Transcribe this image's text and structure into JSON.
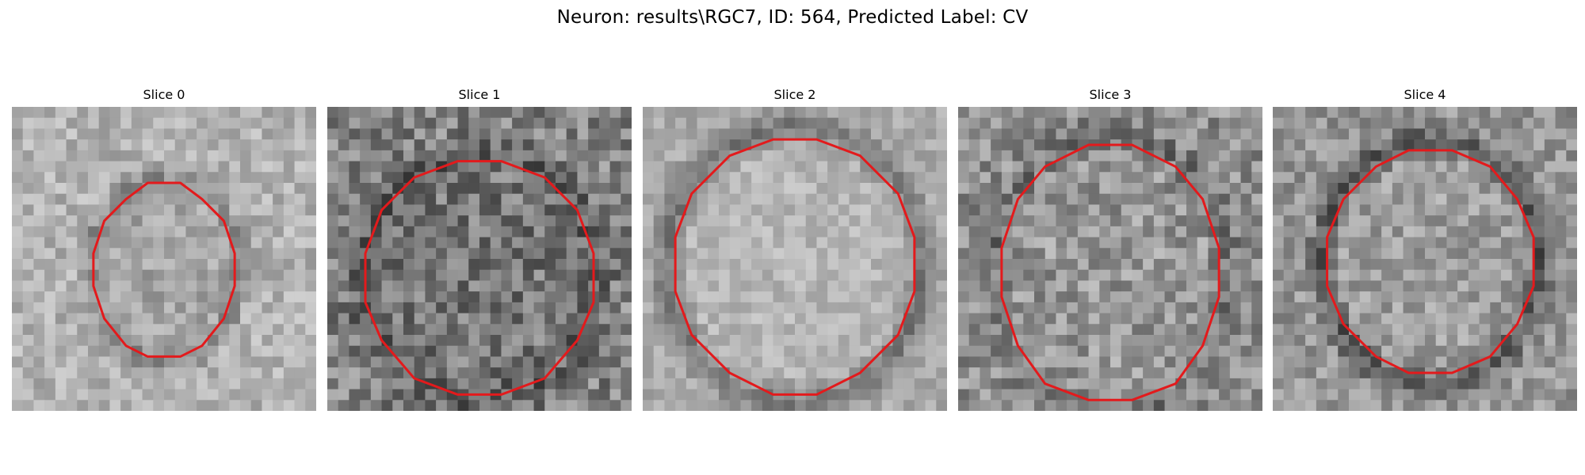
{
  "figure": {
    "suptitle": "Neuron: results\\RGC7, ID: 564, Predicted Label: CV",
    "contour_color": "#e31a1c",
    "colormap": "grayscale",
    "grid_size": 28
  },
  "panels": [
    {
      "title": "Slice 0",
      "roi": {
        "center": [
          0.5,
          0.54
        ],
        "radius": [
          0.24,
          0.29
        ],
        "interior_tone": "mid-gray with bright center"
      }
    },
    {
      "title": "Slice 1",
      "roi": {
        "center": [
          0.5,
          0.56
        ],
        "radius": [
          0.38,
          0.39
        ],
        "interior_tone": "dark, mottled"
      }
    },
    {
      "title": "Slice 2",
      "roi": {
        "center": [
          0.5,
          0.52
        ],
        "radius": [
          0.4,
          0.43
        ],
        "interior_tone": "light, uniform"
      }
    },
    {
      "title": "Slice 3",
      "roi": {
        "center": [
          0.5,
          0.55
        ],
        "radius": [
          0.37,
          0.43
        ],
        "interior_tone": "mottled mid-gray"
      }
    },
    {
      "title": "Slice 4",
      "roi": {
        "center": [
          0.52,
          0.51
        ],
        "radius": [
          0.34,
          0.38
        ],
        "interior_tone": "mid-gray with dark rim"
      }
    }
  ]
}
